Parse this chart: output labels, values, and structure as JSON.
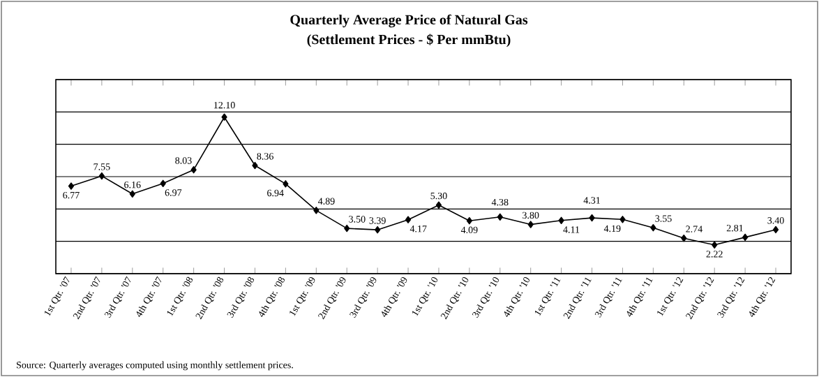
{
  "chart_data": {
    "type": "line",
    "title": "Quarterly Average Price of Natural Gas",
    "subtitle": "(Settlement Prices - $ Per mmBtu)",
    "categories": [
      "1st Qtr. '07",
      "2nd Qtr. '07",
      "3rd Qtr. '07",
      "4th Qtr. '07",
      "1st Qtr. '08",
      "2nd Qtr. '08",
      "3rd Qtr. '08",
      "4th Qtr. '08",
      "1st Qtr. '09",
      "2nd Qtr. '09",
      "3rd Qtr. '09",
      "4th Qtr. '09",
      "1st Qtr. '10",
      "2nd Qtr. '10",
      "3rd Qtr. '10",
      "4th Qtr. '10",
      "1st Qtr. '11",
      "2nd Qtr. '11",
      "3rd Qtr. '11",
      "4th Qtr. '11",
      "1st Qtr. '12",
      "2nd Qtr. '12",
      "3rd Qtr. '12",
      "4th Qtr. '12"
    ],
    "values": [
      6.77,
      7.55,
      6.16,
      6.97,
      8.03,
      12.1,
      8.36,
      6.94,
      4.89,
      3.5,
      3.39,
      4.17,
      5.3,
      4.09,
      4.38,
      3.8,
      4.11,
      4.31,
      4.19,
      3.55,
      2.74,
      2.22,
      2.81,
      3.4
    ],
    "value_labels": [
      "6.77",
      "7.55",
      "6.16",
      "6.97",
      "8.03",
      "12.10",
      "8.36",
      "6.94",
      "4.89",
      "3.50",
      "3.39",
      "4.17",
      "5.30",
      "4.09",
      "4.38",
      "3.80",
      "4.11",
      "4.31",
      "4.19",
      "3.55",
      "2.74",
      "2.22",
      "2.81",
      "3.40"
    ],
    "color": "#000000",
    "marker": "diamond",
    "line_style": "solid",
    "grid": "y",
    "tick_labels": "x",
    "ylim": [
      0,
      15
    ],
    "yticks": [
      {
        "value": 0,
        "label": null
      },
      {
        "value": 2.5,
        "label": null
      },
      {
        "value": 5,
        "label": null
      },
      {
        "value": 7.5,
        "label": null
      },
      {
        "value": 10,
        "label": null
      },
      {
        "value": 12.5,
        "label": null
      },
      {
        "value": 15,
        "label": null
      }
    ],
    "annotations": [
      "Source:  Quarterly averages computed using monthly settlement prices."
    ]
  }
}
